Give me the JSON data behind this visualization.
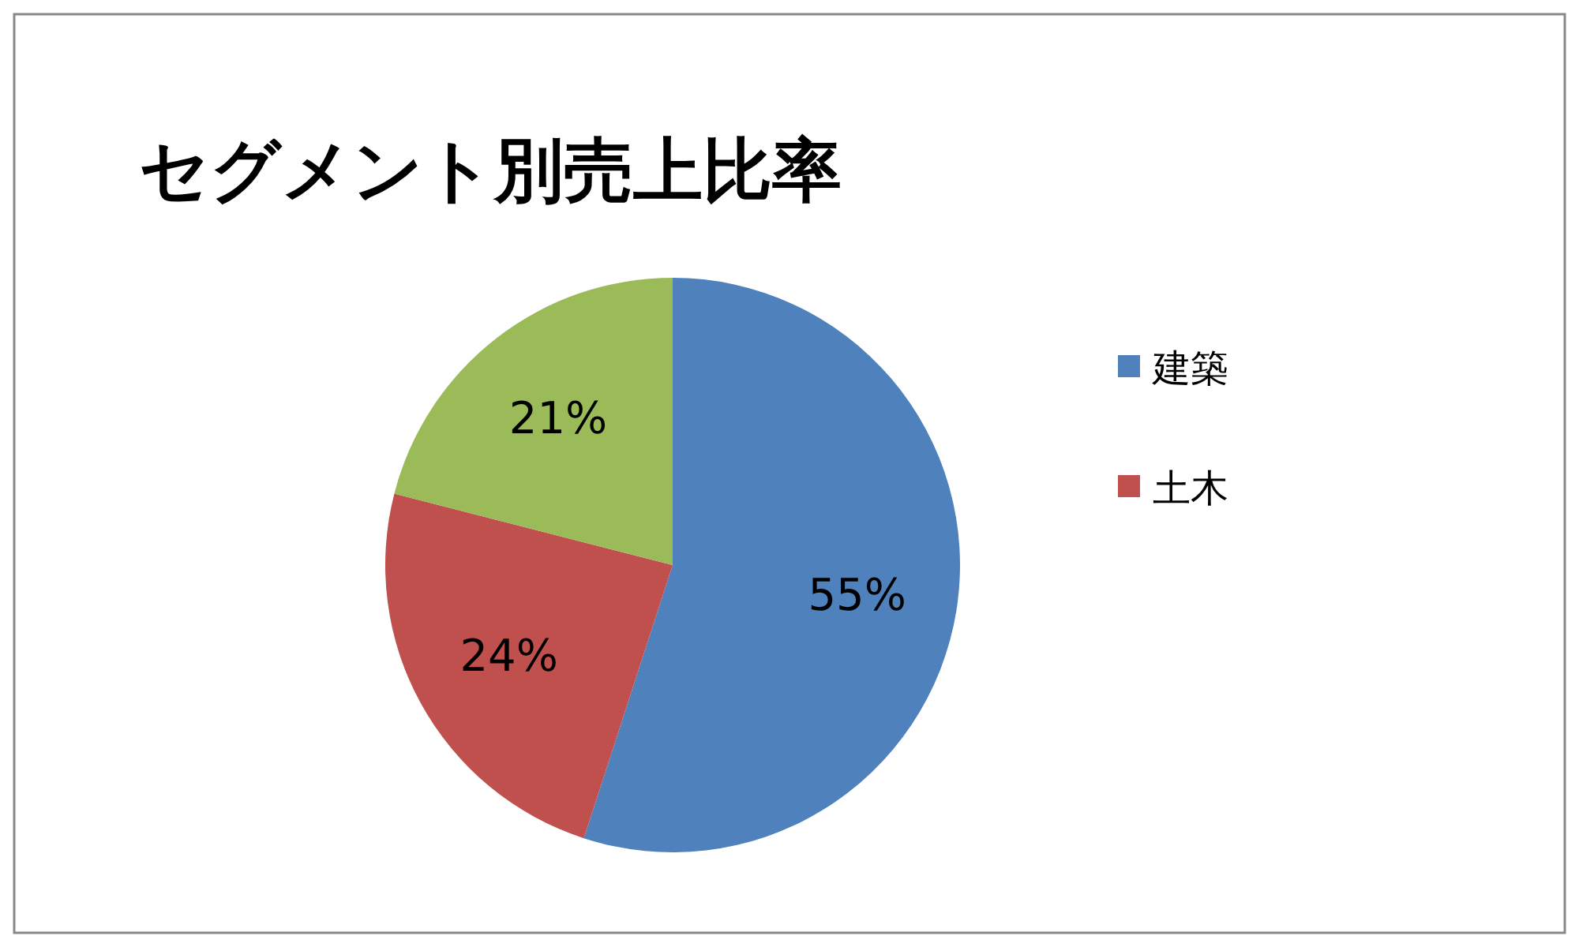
{
  "chart_data": {
    "type": "pie",
    "title": "セグメント別売上比率",
    "categories": [
      "建築",
      "土木",
      null
    ],
    "values": [
      55,
      24,
      21
    ],
    "colors": [
      "#4f81bd",
      "#c0504d",
      "#9bbb59"
    ],
    "value_labels": [
      "55%",
      "24%",
      "21%"
    ],
    "legend": "right"
  }
}
